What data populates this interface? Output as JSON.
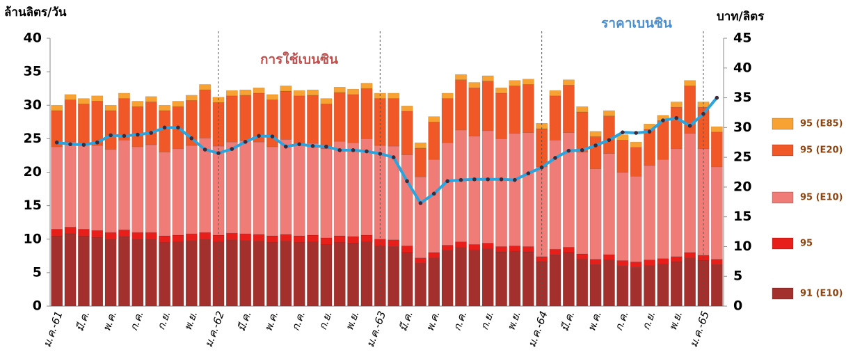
{
  "chart_data": {
    "type": "bar",
    "stacked": true,
    "y_label": "ล้านลิตร/วัน",
    "y2_label": "บาท/ลิตร",
    "annotations": [
      "การใช้เบนซิน",
      "ราคาเบนซิน"
    ],
    "categories": [
      "ม.ค.-61",
      null,
      "มี.ค.",
      null,
      "พ.ค.",
      null,
      "ก.ค.",
      null,
      "ก.ย.",
      null,
      "พ.ย.",
      null,
      "ม.ค.-62",
      null,
      "มี.ค.",
      null,
      "พ.ค.",
      null,
      "ก.ค.",
      null,
      "ก.ย.",
      null,
      "พ.ย.",
      null,
      "ม.ค.-63",
      null,
      "มี.ค.",
      null,
      "พ.ค.",
      null,
      "ก.ค.",
      null,
      "ก.ย.",
      null,
      "พ.ย.",
      null,
      "ม.ค.-64",
      null,
      "มี.ค.",
      null,
      "พ.ค.",
      null,
      "ก.ค.",
      null,
      "ก.ย.",
      null,
      "พ.ย.",
      null,
      "ม.ค.-65",
      null
    ],
    "series": [
      {
        "name": "91 (E10)",
        "color": "#a3302d",
        "values": [
          10.5,
          10.8,
          10.5,
          10.3,
          10,
          10.4,
          10,
          10,
          9.5,
          9.6,
          9.8,
          10,
          9.6,
          9.9,
          9.8,
          9.7,
          9.5,
          9.7,
          9.5,
          9.6,
          9.2,
          9.5,
          9.4,
          9.6,
          9,
          8.9,
          8,
          6.4,
          7.2,
          8.3,
          8.8,
          8.4,
          8.6,
          8.1,
          8.2,
          8.1,
          6.6,
          7.7,
          8,
          7,
          6.2,
          6.9,
          6,
          5.8,
          6.1,
          6.3,
          6.6,
          7.2,
          6.8,
          6.2
        ]
      },
      {
        "name": "95",
        "color": "#e81e1a",
        "values": [
          1,
          1,
          1,
          1,
          1,
          1,
          1,
          1,
          1,
          1,
          1,
          1,
          1,
          1,
          1,
          1,
          1,
          1,
          1,
          1,
          1,
          1,
          1,
          1,
          1,
          1,
          1,
          0.8,
          0.8,
          0.8,
          0.8,
          0.8,
          0.8,
          0.8,
          0.8,
          0.8,
          0.8,
          0.8,
          0.8,
          0.8,
          0.8,
          0.8,
          0.8,
          0.8,
          0.8,
          0.8,
          0.8,
          0.8,
          0.8,
          0.8
        ]
      },
      {
        "name": "95 (E10)",
        "color": "#f07c78",
        "values": [
          12.3,
          12.7,
          12.7,
          12.7,
          12.4,
          13.4,
          12.8,
          13.1,
          12.5,
          12.9,
          13.2,
          14.1,
          13.3,
          13.6,
          13.9,
          13.8,
          13.3,
          14.2,
          13.7,
          13.7,
          13.3,
          14.1,
          14.0,
          14.4,
          14.0,
          14.0,
          13.6,
          12.1,
          13.9,
          15.3,
          16.7,
          16.2,
          16.8,
          16.1,
          16.8,
          17.0,
          13.4,
          16.3,
          17.1,
          15.2,
          13.5,
          15.1,
          13.2,
          12.8,
          14.1,
          14.8,
          16.1,
          17.8,
          15.9,
          13.8
        ]
      },
      {
        "name": "95 (E20)",
        "color": "#f05828",
        "values": [
          5.4,
          6.3,
          6.0,
          6.6,
          5.8,
          6.2,
          6.0,
          6.4,
          6.2,
          6.3,
          6.7,
          7.2,
          6.5,
          6.9,
          6.8,
          7.3,
          7.0,
          7.2,
          7.2,
          7.2,
          6.7,
          7.3,
          7.2,
          7.5,
          7.0,
          7.1,
          6.5,
          4.3,
          5.6,
          6.6,
          7.5,
          7.2,
          7.4,
          6.8,
          7.1,
          7.2,
          5.7,
          6.6,
          7.1,
          6.0,
          4.8,
          5.6,
          4.8,
          4.3,
          5.4,
          5.8,
          6.2,
          7.1,
          6.2,
          5.2
        ]
      },
      {
        "name": "95 (E85)",
        "color": "#f7a232",
        "values": [
          0.8,
          0.8,
          0.8,
          0.8,
          0.8,
          0.8,
          0.8,
          0.8,
          0.8,
          0.8,
          0.8,
          0.8,
          0.8,
          0.8,
          0.8,
          0.8,
          0.8,
          0.8,
          0.8,
          0.8,
          0.8,
          0.8,
          0.8,
          0.8,
          0.8,
          0.8,
          0.8,
          0.8,
          0.8,
          0.8,
          0.8,
          0.8,
          0.8,
          0.8,
          0.8,
          0.8,
          0.8,
          0.8,
          0.8,
          0.8,
          0.8,
          0.8,
          0.8,
          0.8,
          0.8,
          0.8,
          0.8,
          0.8,
          0.8,
          0.8
        ]
      }
    ],
    "line": {
      "axis": "y2",
      "color": "#2aa4de",
      "marker_color": "#3a2a3a",
      "values": [
        27.5,
        27.2,
        27.1,
        27.5,
        28.7,
        28.6,
        28.8,
        29.1,
        30,
        30,
        28.2,
        26.3,
        25.7,
        26.4,
        27.6,
        28.6,
        28.5,
        26.8,
        27.2,
        26.9,
        26.8,
        26.2,
        26.2,
        26.0,
        25.6,
        25,
        21,
        17.3,
        18.9,
        21,
        21.2,
        21.3,
        21.3,
        21.3,
        21.2,
        22.3,
        23.3,
        24.9,
        26.1,
        26.2,
        27,
        27.9,
        29.2,
        29.1,
        29.3,
        31.2,
        31.6,
        30.3,
        32.3,
        35
      ]
    },
    "ylim": [
      0,
      40
    ],
    "yticks": [
      0,
      5,
      10,
      15,
      20,
      25,
      30,
      35,
      40
    ],
    "y2lim": [
      0,
      45
    ],
    "y2ticks": [
      0,
      5,
      10,
      15,
      20,
      25,
      30,
      35,
      40,
      45
    ]
  }
}
